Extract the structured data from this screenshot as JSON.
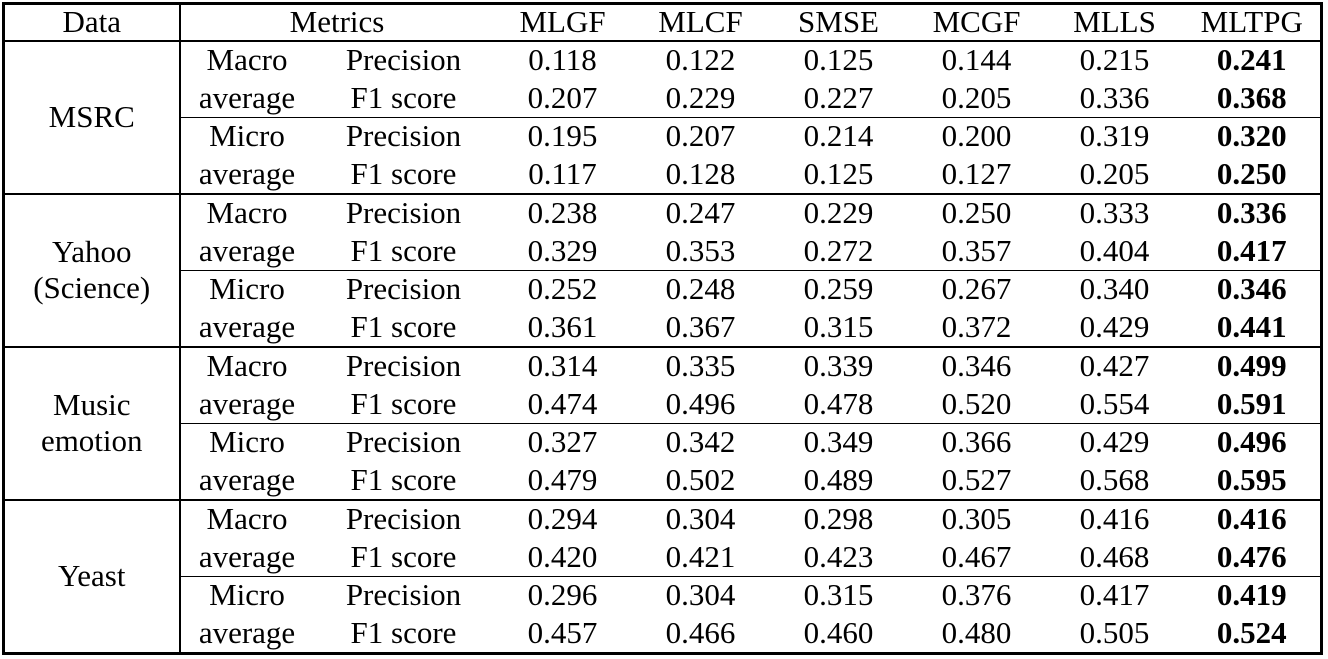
{
  "table": {
    "header": {
      "col_data": "Data",
      "col_metrics": "Metrics",
      "methods": [
        "MLGF",
        "MLCF",
        "SMSE",
        "MCGF",
        "MLLS",
        "MLTPG"
      ]
    },
    "bold_method": "MLTPG",
    "blocks": [
      {
        "dataset": "MSRC",
        "rows": [
          {
            "group": "Macro",
            "metric": "Precision",
            "values": [
              "0.118",
              "0.122",
              "0.125",
              "0.144",
              "0.215",
              "0.241"
            ]
          },
          {
            "group": "average",
            "metric": "F1 score",
            "values": [
              "0.207",
              "0.229",
              "0.227",
              "0.205",
              "0.336",
              "0.368"
            ]
          },
          {
            "group": "Micro",
            "metric": "Precision",
            "values": [
              "0.195",
              "0.207",
              "0.214",
              "0.200",
              "0.319",
              "0.320"
            ]
          },
          {
            "group": "average",
            "metric": "F1 score",
            "values": [
              "0.117",
              "0.128",
              "0.125",
              "0.127",
              "0.205",
              "0.250"
            ]
          }
        ]
      },
      {
        "dataset": "Yahoo\n(Science)",
        "rows": [
          {
            "group": "Macro",
            "metric": "Precision",
            "values": [
              "0.238",
              "0.247",
              "0.229",
              "0.250",
              "0.333",
              "0.336"
            ]
          },
          {
            "group": "average",
            "metric": "F1 score",
            "values": [
              "0.329",
              "0.353",
              "0.272",
              "0.357",
              "0.404",
              "0.417"
            ]
          },
          {
            "group": "Micro",
            "metric": "Precision",
            "values": [
              "0.252",
              "0.248",
              "0.259",
              "0.267",
              "0.340",
              "0.346"
            ]
          },
          {
            "group": "average",
            "metric": "F1 score",
            "values": [
              "0.361",
              "0.367",
              "0.315",
              "0.372",
              "0.429",
              "0.441"
            ]
          }
        ]
      },
      {
        "dataset": "Music\nemotion",
        "rows": [
          {
            "group": "Macro",
            "metric": "Precision",
            "values": [
              "0.314",
              "0.335",
              "0.339",
              "0.346",
              "0.427",
              "0.499"
            ]
          },
          {
            "group": "average",
            "metric": "F1 score",
            "values": [
              "0.474",
              "0.496",
              "0.478",
              "0.520",
              "0.554",
              "0.591"
            ]
          },
          {
            "group": "Micro",
            "metric": "Precision",
            "values": [
              "0.327",
              "0.342",
              "0.349",
              "0.366",
              "0.429",
              "0.496"
            ]
          },
          {
            "group": "average",
            "metric": "F1 score",
            "values": [
              "0.479",
              "0.502",
              "0.489",
              "0.527",
              "0.568",
              "0.595"
            ]
          }
        ]
      },
      {
        "dataset": "Yeast",
        "rows": [
          {
            "group": "Macro",
            "metric": "Precision",
            "values": [
              "0.294",
              "0.304",
              "0.298",
              "0.305",
              "0.416",
              "0.416"
            ]
          },
          {
            "group": "average",
            "metric": "F1 score",
            "values": [
              "0.420",
              "0.421",
              "0.423",
              "0.467",
              "0.468",
              "0.476"
            ]
          },
          {
            "group": "Micro",
            "metric": "Precision",
            "values": [
              "0.296",
              "0.304",
              "0.315",
              "0.376",
              "0.417",
              "0.419"
            ]
          },
          {
            "group": "average",
            "metric": "F1 score",
            "values": [
              "0.457",
              "0.466",
              "0.460",
              "0.480",
              "0.505",
              "0.524"
            ]
          }
        ]
      }
    ]
  }
}
